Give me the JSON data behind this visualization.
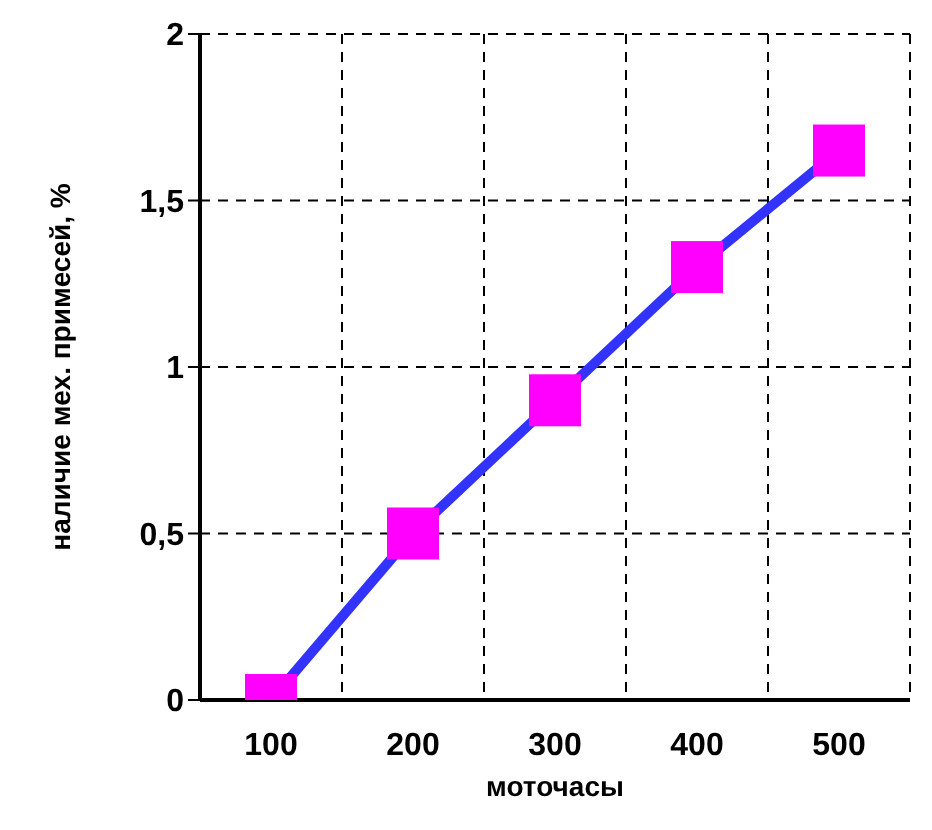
{
  "chart_data": {
    "type": "line",
    "xlabel": "моточасы",
    "ylabel": "наличие  мех. примесей,  %",
    "categories": [
      "100",
      "200",
      "300",
      "400",
      "500"
    ],
    "series": [
      {
        "color": "#3333ff",
        "values": [
          0,
          0.5,
          0.9,
          1.3,
          1.65
        ]
      }
    ],
    "ylim": [
      0,
      2
    ],
    "yticks": [
      0,
      {
        "value": 0.5,
        "label": "0,5"
      },
      1,
      {
        "value": 1.5,
        "label": "1,5"
      },
      2
    ],
    "grid": true,
    "marker": "square"
  }
}
